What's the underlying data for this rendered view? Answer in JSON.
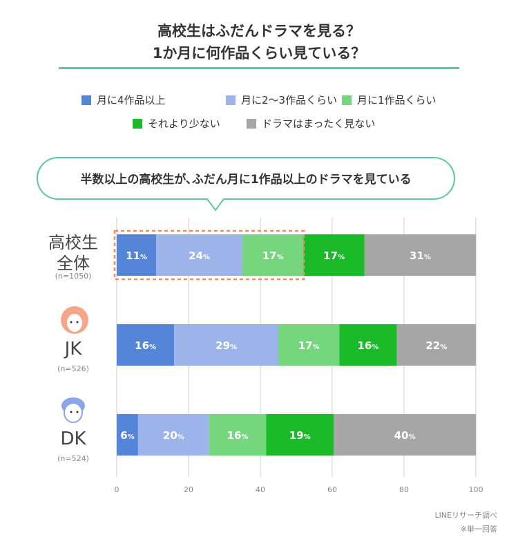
{
  "chart_data": {
    "type": "bar",
    "orientation": "horizontal-stacked",
    "title": [
      "高校生はふだんドラマを見る？",
      "1か月に何作品くらい見ている？"
    ],
    "callout": "半数以上の高校生が､ふだん月に1作品以上のドラマを見ている",
    "categories": [
      {
        "label": [
          "高校生",
          "全体"
        ],
        "n": "(n=1050)"
      },
      {
        "label": [
          "JK"
        ],
        "n": "(n=526)",
        "icon": "girl-face-icon"
      },
      {
        "label": [
          "DK"
        ],
        "n": "(n=524)",
        "icon": "boy-face-icon"
      }
    ],
    "series": [
      {
        "name": "月に4作品以上",
        "color": "#5585d9",
        "values": [
          11,
          16,
          6
        ]
      },
      {
        "name": "月に2〜3作品くらい",
        "color": "#9db4ea",
        "values": [
          24,
          29,
          20
        ]
      },
      {
        "name": "月に1作品くらい",
        "color": "#76d67e",
        "values": [
          17,
          17,
          16
        ]
      },
      {
        "name": "それより少ない",
        "color": "#1aba28",
        "values": [
          17,
          16,
          19
        ]
      },
      {
        "name": "ドラマはまったく見ない",
        "color": "#a6a6a6",
        "values": [
          31,
          22,
          40
        ]
      }
    ],
    "value_suffix": "%",
    "xlim": [
      0,
      100
    ],
    "xticks": [
      "0",
      "20",
      "40",
      "60",
      "80",
      "100"
    ],
    "grid": true,
    "legend": "top",
    "highlight_color": "#f58a5b",
    "accent_color": "#5ac89a"
  },
  "footer": {
    "source": "LINEリサーチ調べ",
    "note": "※単一回答"
  }
}
